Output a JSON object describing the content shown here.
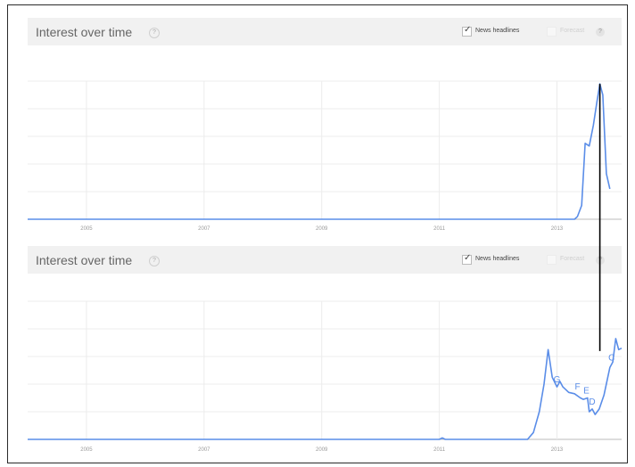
{
  "panels": [
    {
      "title": "Interest over time",
      "help_glyph": "?",
      "news_headlines_label": "News headlines",
      "news_headlines_checked": true,
      "forecast_label": "Forecast",
      "forecast_checked": false,
      "forecast_chevron": "?"
    },
    {
      "title": "Interest over time",
      "help_glyph": "?",
      "news_headlines_label": "News headlines",
      "news_headlines_checked": true,
      "forecast_label": "Forecast",
      "forecast_checked": false,
      "forecast_chevron": "?"
    }
  ],
  "colors": {
    "line": "#5a8de8",
    "grid": "#ececec",
    "axis": "#bbbbbb",
    "connector": "#000000",
    "label": "#5a8de8"
  },
  "chart_data": [
    {
      "type": "line",
      "title": "Interest over time",
      "x_tick_labels": [
        "2005",
        "2007",
        "2009",
        "2011",
        "2013"
      ],
      "x_ticks": [
        2005,
        2007,
        2009,
        2011,
        2013
      ],
      "xlim": [
        2004,
        2014.1
      ],
      "ylim": [
        0,
        100
      ],
      "grid": true,
      "series": [
        {
          "values": [
            [
              2004,
              0
            ],
            [
              2013.3,
              0
            ],
            [
              2013.35,
              2
            ],
            [
              2013.42,
              10
            ],
            [
              2013.48,
              55
            ],
            [
              2013.55,
              53
            ],
            [
              2013.62,
              68
            ],
            [
              2013.68,
              85
            ],
            [
              2013.73,
              98
            ],
            [
              2013.78,
              90
            ],
            [
              2013.84,
              33
            ],
            [
              2013.9,
              22
            ]
          ]
        }
      ]
    },
    {
      "type": "line",
      "title": "Interest over time",
      "x_tick_labels": [
        "2005",
        "2007",
        "2009",
        "2011",
        "2013"
      ],
      "x_ticks": [
        2005,
        2007,
        2009,
        2011,
        2013
      ],
      "xlim": [
        2004,
        2014.1
      ],
      "ylim": [
        0,
        100
      ],
      "grid": true,
      "series": [
        {
          "values": [
            [
              2004,
              0
            ],
            [
              2011,
              0
            ],
            [
              2011.05,
              1
            ],
            [
              2011.1,
              0
            ],
            [
              2012.5,
              0
            ],
            [
              2012.6,
              5
            ],
            [
              2012.7,
              20
            ],
            [
              2012.78,
              40
            ],
            [
              2012.85,
              65
            ],
            [
              2012.92,
              45
            ],
            [
              2013.0,
              38
            ],
            [
              2013.05,
              42
            ],
            [
              2013.1,
              38
            ],
            [
              2013.2,
              34
            ],
            [
              2013.3,
              33
            ],
            [
              2013.4,
              30
            ],
            [
              2013.45,
              29
            ],
            [
              2013.52,
              30
            ],
            [
              2013.55,
              20
            ],
            [
              2013.6,
              22
            ],
            [
              2013.65,
              18
            ],
            [
              2013.72,
              22
            ],
            [
              2013.8,
              32
            ],
            [
              2013.9,
              52
            ],
            [
              2013.95,
              56
            ],
            [
              2014.0,
              73
            ],
            [
              2014.05,
              65
            ],
            [
              2014.1,
              66
            ]
          ]
        }
      ],
      "annotations": [
        {
          "text": "G",
          "x": 2013.0,
          "y": 38
        },
        {
          "text": "F",
          "x": 2013.35,
          "y": 33
        },
        {
          "text": "E",
          "x": 2013.5,
          "y": 30
        },
        {
          "text": "D",
          "x": 2013.6,
          "y": 22
        },
        {
          "text": "C",
          "x": 2013.93,
          "y": 54
        }
      ]
    }
  ]
}
